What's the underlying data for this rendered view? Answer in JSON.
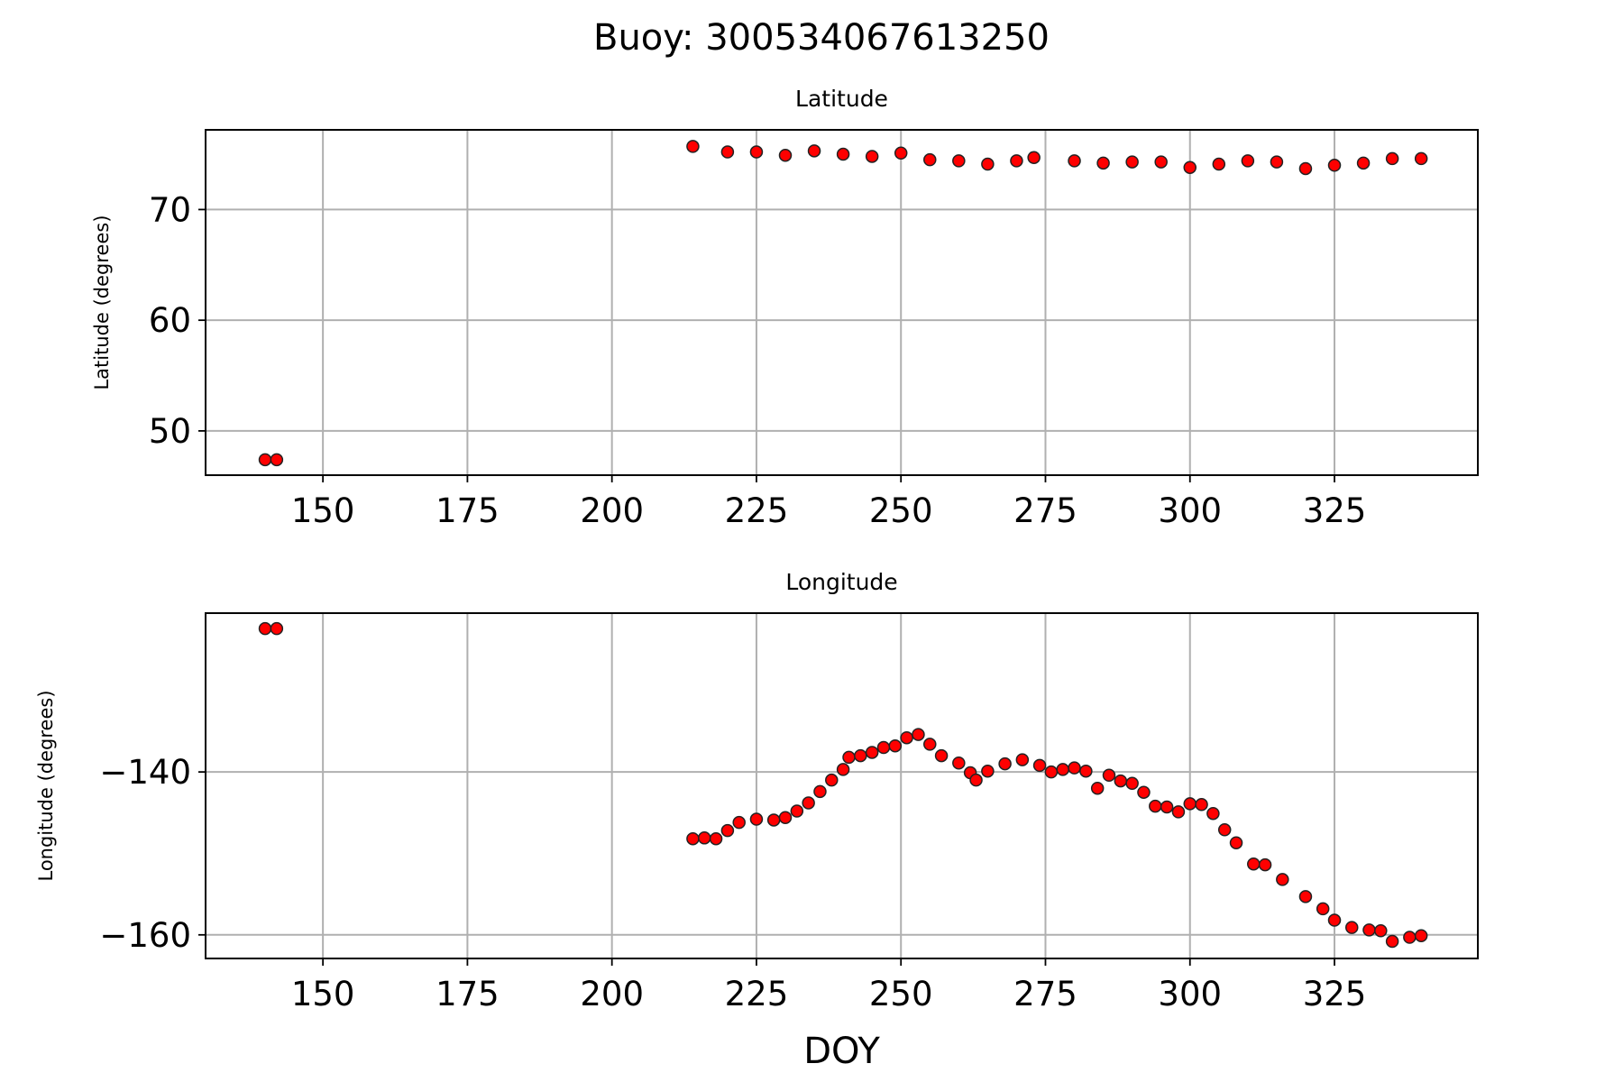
{
  "title": "Buoy: 300534067613250",
  "chart_data": [
    {
      "type": "scatter",
      "title": "Latitude",
      "ylabel": "Latitude (degrees)",
      "x": [
        140,
        142,
        214,
        220,
        225,
        230,
        235,
        240,
        245,
        250,
        255,
        260,
        265,
        270,
        273,
        280,
        285,
        290,
        295,
        300,
        305,
        310,
        315,
        320,
        325,
        330,
        335,
        340
      ],
      "values": [
        47.4,
        47.4,
        75.7,
        75.2,
        75.2,
        74.9,
        75.3,
        75.0,
        74.8,
        75.1,
        74.5,
        74.4,
        74.1,
        74.4,
        74.7,
        74.4,
        74.2,
        74.3,
        74.3,
        73.8,
        74.1,
        74.4,
        74.3,
        73.7,
        74.0,
        74.2,
        74.6,
        74.6
      ],
      "color": "red",
      "edgecolor": "#222",
      "xlim": [
        129.7,
        349.8
      ],
      "xticks": [
        150,
        175,
        200,
        225,
        250,
        275,
        300,
        325
      ],
      "ylim": [
        46.0,
        77.2
      ],
      "yticks": [
        50,
        60,
        70
      ],
      "grid": true
    },
    {
      "type": "scatter",
      "title": "Longitude",
      "ylabel": "Longitude (degrees)",
      "xlabel": "DOY",
      "x": [
        140,
        142,
        214,
        216,
        218,
        220,
        222,
        225,
        228,
        230,
        232,
        234,
        236,
        238,
        240,
        241,
        243,
        245,
        247,
        249,
        251,
        253,
        255,
        257,
        260,
        262,
        263,
        265,
        268,
        271,
        274,
        276,
        278,
        280,
        282,
        284,
        286,
        288,
        290,
        292,
        294,
        296,
        298,
        300,
        302,
        304,
        306,
        308,
        311,
        313,
        316,
        320,
        323,
        325,
        328,
        331,
        333,
        335,
        338,
        340
      ],
      "values": [
        -122.4,
        -122.4,
        -148.2,
        -148.1,
        -148.2,
        -147.2,
        -146.2,
        -145.8,
        -145.9,
        -145.6,
        -144.8,
        -143.8,
        -142.4,
        -141.0,
        -139.7,
        -138.2,
        -138.0,
        -137.6,
        -137.0,
        -136.8,
        -135.8,
        -135.4,
        -136.6,
        -138.0,
        -138.9,
        -140.1,
        -141.0,
        -139.9,
        -139.0,
        -138.5,
        -139.2,
        -140.0,
        -139.7,
        -139.5,
        -139.9,
        -142.0,
        -140.4,
        -141.1,
        -141.4,
        -142.5,
        -144.2,
        -144.3,
        -144.9,
        -143.9,
        -144.0,
        -145.1,
        -147.1,
        -148.7,
        -151.3,
        -151.4,
        -153.2,
        -155.3,
        -156.8,
        -158.2,
        -159.1,
        -159.4,
        -159.5,
        -160.8,
        -160.3,
        -160.1
      ],
      "color": "red",
      "edgecolor": "#222",
      "xlim": [
        129.7,
        349.8
      ],
      "xticks": [
        150,
        175,
        200,
        225,
        250,
        275,
        300,
        325
      ],
      "ylim": [
        -162.9,
        -120.5
      ],
      "yticks": [
        {
          "value": -160,
          "label": "−160"
        },
        {
          "value": -140,
          "label": "−140"
        }
      ],
      "grid": true
    }
  ]
}
